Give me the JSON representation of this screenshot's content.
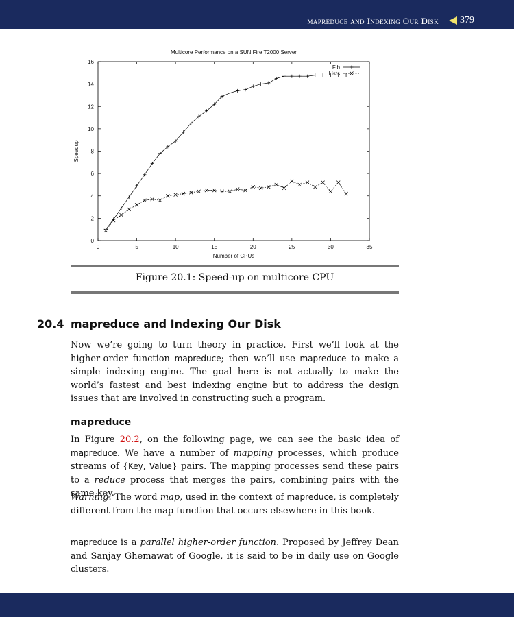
{
  "header": {
    "running_title": "mapreduce and Indexing Our Disk",
    "page_number": "379",
    "bar_color": "#1a2a5e",
    "arrow_color": "#f2e36a"
  },
  "chart_data": {
    "type": "line",
    "title": "Multicore Performance on a SUN Fire T2000 Server",
    "xlabel": "Number of CPUs",
    "ylabel": "Speedup",
    "xlim": [
      0,
      35
    ],
    "ylim": [
      0,
      16
    ],
    "xticks": [
      "0",
      "5",
      "10",
      "15",
      "20",
      "25",
      "30",
      "35"
    ],
    "yticks": [
      "0",
      "2",
      "4",
      "6",
      "8",
      "10",
      "12",
      "14",
      "16"
    ],
    "legend_position": "top-right",
    "series": [
      {
        "name": "Fib",
        "marker": "+",
        "x": [
          1,
          2,
          3,
          4,
          5,
          6,
          7,
          8,
          9,
          10,
          11,
          12,
          13,
          14,
          15,
          16,
          17,
          18,
          19,
          20,
          21,
          22,
          23,
          24,
          25,
          26,
          27,
          28,
          29,
          30,
          31,
          32
        ],
        "values": [
          1.0,
          1.9,
          2.9,
          3.9,
          4.9,
          5.9,
          6.9,
          7.8,
          8.4,
          8.9,
          9.7,
          10.5,
          11.1,
          11.6,
          12.2,
          12.9,
          13.2,
          13.4,
          13.5,
          13.8,
          14.0,
          14.1,
          14.5,
          14.7,
          14.7,
          14.7,
          14.7,
          14.8,
          14.8,
          14.8,
          14.8,
          14.8
        ]
      },
      {
        "name": "Lists",
        "marker": "x",
        "x": [
          1,
          2,
          3,
          4,
          5,
          6,
          7,
          8,
          9,
          10,
          11,
          12,
          13,
          14,
          15,
          16,
          17,
          18,
          19,
          20,
          21,
          22,
          23,
          24,
          25,
          26,
          27,
          28,
          29,
          30,
          31,
          32
        ],
        "values": [
          0.9,
          1.8,
          2.3,
          2.8,
          3.2,
          3.6,
          3.7,
          3.6,
          4.0,
          4.1,
          4.2,
          4.3,
          4.4,
          4.5,
          4.5,
          4.4,
          4.4,
          4.6,
          4.5,
          4.8,
          4.7,
          4.8,
          5.0,
          4.7,
          5.3,
          5.0,
          5.2,
          4.8,
          5.2,
          4.4,
          5.2,
          4.2
        ]
      }
    ]
  },
  "figure": {
    "caption": "Figure 20.1: Speed-up on multicore CPU"
  },
  "section": {
    "number": "20.4",
    "title": "mapreduce and Indexing Our Disk",
    "p1": {
      "a": "Now we’re going to turn theory in practice. First we’ll look at the higher-order function ",
      "b": "mapreduce",
      "c": "; then we’ll use ",
      "d": "mapreduce",
      "e": " to make a simple indexing engine. The goal here is not actually to make the world’s fastest and best indexing engine but to address the design issues that are involved in constructing such a program."
    },
    "subheading": "mapreduce",
    "p2": {
      "a": "In Figure ",
      "ref": "20.2",
      "b": ", on the following page, we can see the basic idea of ",
      "c": "mapreduce",
      "d": ". We have a number of ",
      "e": "mapping",
      "f": " processes, which produce streams of ",
      "g": "{Key, Value}",
      "h": " pairs. The mapping processes send these pairs to a ",
      "i": "reduce",
      "j": " process that merges the pairs, combining pairs with the same key."
    },
    "p3": {
      "a": "Warning",
      "b": ": The word ",
      "c": "map",
      "d": ", used in the context of ",
      "e": "mapreduce",
      "f": ", is completely different from the map function that occurs elsewhere in this book."
    },
    "p4": {
      "a": "mapreduce",
      "b": " is a ",
      "c": "parallel higher-order function",
      "d": ". Proposed by Jeffrey Dean and Sanjay Ghemawat of Google, it is said to be in daily use on Google clusters."
    }
  }
}
